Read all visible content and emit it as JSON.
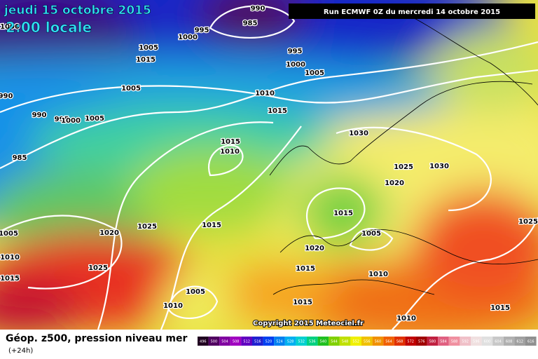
{
  "header": {
    "date": "jeudi 15 octobre 2015",
    "time": "2:00 locale",
    "run": "Run ECMWF 0Z du mercredi 14 octobre 2015"
  },
  "isobar_labels": [
    "990",
    "985",
    "995",
    "1000",
    "1005",
    "1015",
    "995",
    "1000",
    "1005",
    "1005",
    "1010",
    "1015",
    "990",
    "995",
    "1000",
    "1005",
    "985",
    "1030",
    "1015",
    "1010",
    "1025",
    "1030",
    "1020",
    "1015",
    "1005",
    "1025",
    "1015",
    "1020",
    "1005",
    "1010",
    "1020",
    "1025",
    "1015",
    "1015",
    "1010",
    "1005",
    "1010",
    "1015",
    "1010",
    "1015",
    "1025",
    "990",
    "1000"
  ],
  "copyright": "Copyright 2015 Meteociel.fr",
  "legend": {
    "title": "Géop. z500, pression niveau mer",
    "subtitle": "(+24h)",
    "scale": [
      496,
      500,
      504,
      508,
      512,
      516,
      520,
      524,
      528,
      532,
      536,
      540,
      544,
      548,
      552,
      556,
      560,
      564,
      568,
      572,
      576,
      580,
      584,
      588,
      592,
      596,
      600,
      604,
      608,
      612,
      616
    ]
  }
}
